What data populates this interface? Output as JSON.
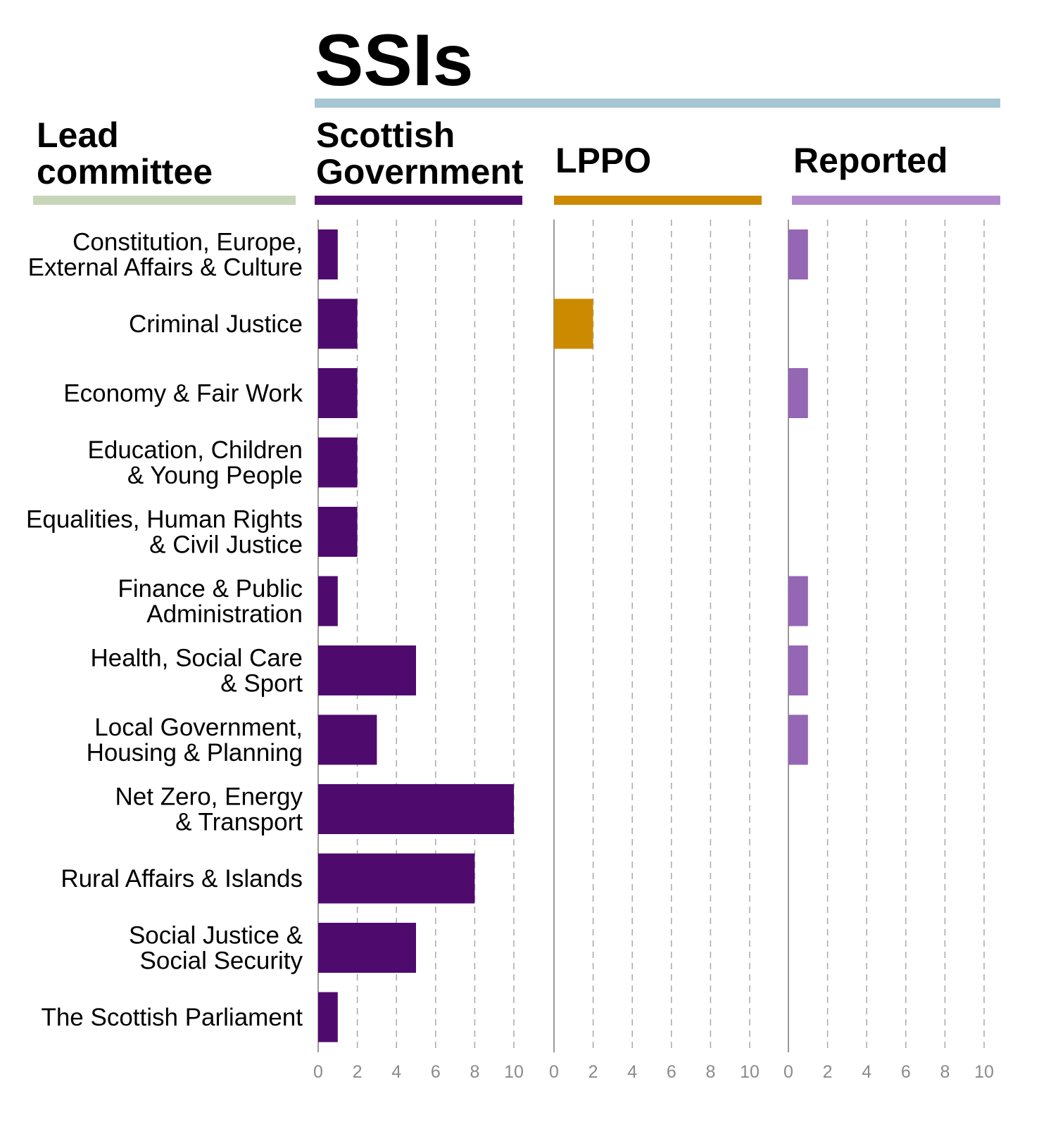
{
  "chart_data": {
    "type": "bar",
    "title": "SSIs",
    "category_header": [
      "Lead",
      "committee"
    ],
    "categories": [
      [
        "Constitution, Europe,",
        "External Affairs & Culture"
      ],
      [
        "Criminal Justice"
      ],
      [
        "Economy & Fair Work"
      ],
      [
        "Education, Children",
        "& Young People"
      ],
      [
        "Equalities, Human Rights",
        "& Civil Justice"
      ],
      [
        "Finance & Public",
        "Administration"
      ],
      [
        "Health, Social Care",
        "& Sport"
      ],
      [
        "Local Government,",
        "Housing & Planning"
      ],
      [
        "Net Zero, Energy",
        "& Transport"
      ],
      [
        "Rural Affairs & Islands"
      ],
      [
        "Social Justice &",
        "Social Security"
      ],
      [
        "The Scottish Parliament"
      ]
    ],
    "xlim": [
      0,
      10
    ],
    "xticks": [
      "0",
      "2",
      "4",
      "6",
      "8",
      "10"
    ],
    "grid": "vertical dashed",
    "series": [
      {
        "name": [
          "Scottish",
          "Government"
        ],
        "color": "#4f0a6e",
        "values": [
          1,
          2,
          2,
          2,
          2,
          1,
          5,
          3,
          10,
          8,
          5,
          1
        ]
      },
      {
        "name": [
          "LPPO"
        ],
        "color": "#cc8a00",
        "values": [
          0,
          2,
          0,
          0,
          0,
          0,
          0,
          0,
          0,
          0,
          0,
          0
        ]
      },
      {
        "name": [
          "Reported"
        ],
        "color": "#9466b3",
        "values": [
          1,
          0,
          1,
          0,
          0,
          1,
          1,
          1,
          0,
          0,
          0,
          0
        ]
      }
    ],
    "colors": {
      "title_rule": "#a5c6d2",
      "category_rule": "#c7d6b9",
      "reported_rule": "#b48acf"
    }
  }
}
